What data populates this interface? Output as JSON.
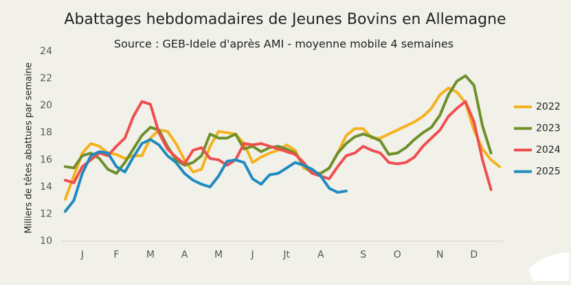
{
  "chart_data": {
    "type": "line",
    "title": "Abattages hebdomadaires de Jeunes Bovins en Allemagne",
    "subtitle": "Source : GEB-Idele d'après AMI - moyenne mobile 4 semaines",
    "y_label": "Milliers de têtes abattues par semaine",
    "categories": [
      null,
      null,
      "J",
      null,
      null,
      null,
      "F",
      null,
      null,
      null,
      "M",
      null,
      null,
      null,
      "A",
      null,
      null,
      null,
      "M",
      null,
      null,
      null,
      "J",
      null,
      null,
      null,
      "Jt",
      null,
      null,
      null,
      "A",
      null,
      null,
      null,
      null,
      "S",
      null,
      null,
      null,
      "O",
      null,
      null,
      null,
      null,
      "N",
      null,
      null,
      null,
      "D",
      null,
      null,
      null
    ],
    "ylim": [
      10,
      24
    ],
    "yticks": [
      10,
      12,
      14,
      16,
      18,
      20,
      22,
      24
    ],
    "series": [
      {
        "name": "2022",
        "color": "#f5b21c",
        "values": [
          13.1,
          14.8,
          16.5,
          17.2,
          17.0,
          16.5,
          16.4,
          16.1,
          16.3,
          16.3,
          17.6,
          18.2,
          18.1,
          17.2,
          16.0,
          15.1,
          15.3,
          17.0,
          18.1,
          18.0,
          17.9,
          17.2,
          15.8,
          16.2,
          16.5,
          16.7,
          17.1,
          16.7,
          15.4,
          15.1,
          15.0,
          15.4,
          16.5,
          17.8,
          18.3,
          18.3,
          17.6,
          17.6,
          17.9,
          18.2,
          18.5,
          18.8,
          19.2,
          19.8,
          20.8,
          21.3,
          21.0,
          20.2,
          18.2,
          16.8,
          16.0,
          15.5
        ]
      },
      {
        "name": "2023",
        "color": "#6e8f2a",
        "values": [
          15.5,
          15.4,
          16.3,
          16.5,
          16.1,
          15.3,
          15.0,
          15.8,
          16.8,
          17.8,
          18.4,
          18.2,
          17.0,
          16.0,
          15.6,
          15.8,
          16.3,
          17.9,
          17.6,
          17.6,
          17.9,
          16.8,
          17.0,
          16.6,
          16.9,
          17.0,
          16.8,
          16.5,
          15.6,
          15.0,
          15.0,
          15.4,
          16.5,
          17.2,
          17.7,
          17.9,
          17.7,
          17.4,
          16.4,
          16.5,
          16.9,
          17.5,
          18.0,
          18.4,
          19.3,
          20.8,
          21.8,
          22.2,
          21.5,
          18.5,
          16.5,
          null
        ]
      },
      {
        "name": "2024",
        "color": "#f04e4e",
        "values": [
          14.5,
          14.3,
          15.5,
          16.0,
          16.5,
          16.3,
          17.0,
          17.6,
          19.2,
          20.3,
          20.1,
          18.0,
          16.8,
          16.2,
          15.7,
          16.7,
          16.9,
          16.1,
          16.0,
          15.6,
          16.0,
          17.2,
          17.1,
          17.2,
          17.0,
          16.8,
          16.6,
          16.4,
          15.8,
          15.0,
          14.8,
          14.6,
          15.5,
          16.3,
          16.5,
          17.0,
          16.7,
          16.5,
          15.8,
          15.7,
          15.8,
          16.2,
          17.0,
          17.6,
          18.2,
          19.2,
          19.8,
          20.3,
          18.8,
          16.0,
          13.8,
          null
        ]
      },
      {
        "name": "2025",
        "color": "#1f8ac0",
        "values": [
          12.2,
          13.0,
          15.0,
          16.3,
          16.6,
          16.5,
          15.5,
          15.1,
          16.2,
          17.2,
          17.5,
          17.1,
          16.3,
          15.8,
          15.0,
          14.5,
          14.2,
          14.0,
          14.8,
          15.9,
          16.0,
          15.8,
          14.6,
          14.2,
          14.9,
          15.0,
          15.4,
          15.8,
          15.6,
          15.3,
          14.8,
          13.9,
          13.6,
          13.7,
          null,
          null,
          null,
          null,
          null,
          null,
          null,
          null,
          null,
          null,
          null,
          null,
          null,
          null,
          null,
          null,
          null,
          null
        ]
      }
    ]
  }
}
